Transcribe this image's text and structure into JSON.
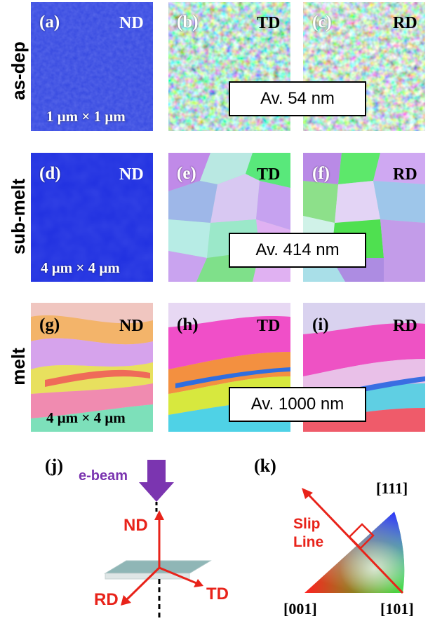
{
  "rows": [
    {
      "label": "as-dep",
      "scale": "1 μm × 1 μm",
      "average": "Av. 54 nm",
      "panels": [
        {
          "tag": "(a)",
          "dir": "ND"
        },
        {
          "tag": "(b)",
          "dir": "TD"
        },
        {
          "tag": "(c)",
          "dir": "RD"
        }
      ]
    },
    {
      "label": "sub-melt",
      "scale": "4 μm × 4 μm",
      "average": "Av. 414 nm",
      "panels": [
        {
          "tag": "(d)",
          "dir": "ND"
        },
        {
          "tag": "(e)",
          "dir": "TD"
        },
        {
          "tag": "(f)",
          "dir": "RD"
        }
      ]
    },
    {
      "label": "melt",
      "scale": "4 μm × 4 μm",
      "average": "Av. 1000 nm",
      "panels": [
        {
          "tag": "(g)",
          "dir": "ND"
        },
        {
          "tag": "(h)",
          "dir": "TD"
        },
        {
          "tag": "(i)",
          "dir": "RD"
        }
      ]
    }
  ],
  "panel_j": {
    "tag": "(j)",
    "ebeam": "e-beam",
    "nd": "ND",
    "td": "TD",
    "rd": "RD"
  },
  "panel_k": {
    "tag": "(k)",
    "v111": "[111]",
    "v001": "[001]",
    "v101": "[101]",
    "slip1": "Slip",
    "slip2": "Line"
  },
  "colors": {
    "ebeam": "#7b35b0",
    "axis": "#e8231a",
    "plate": "#8fb6b6"
  }
}
